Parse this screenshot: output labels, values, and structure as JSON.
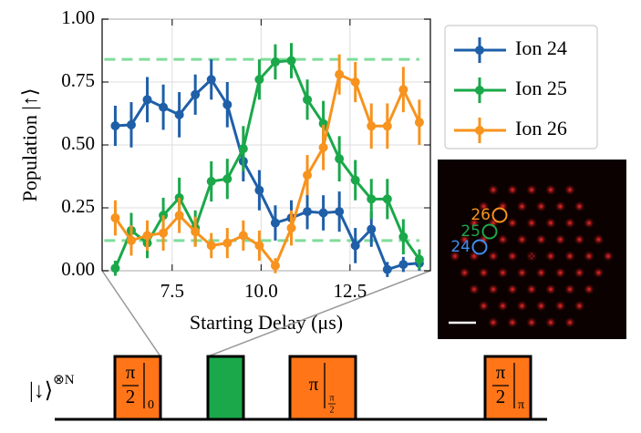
{
  "chart_data": {
    "type": "line",
    "x_label": "Starting Delay (μs)",
    "y_label": "Population |↑⟩",
    "x": [
      5.9,
      6.35,
      6.8,
      7.25,
      7.7,
      8.15,
      8.6,
      9.05,
      9.5,
      9.95,
      10.4,
      10.85,
      11.3,
      11.75,
      12.2,
      12.65,
      13.1,
      13.55,
      14.0,
      14.45
    ],
    "series": [
      {
        "name": "Ion 24",
        "color": "#1f5fa8",
        "values": [
          0.576,
          0.58,
          0.68,
          0.65,
          0.62,
          0.7,
          0.76,
          0.66,
          0.435,
          0.32,
          0.19,
          0.21,
          0.235,
          0.23,
          0.235,
          0.1,
          0.165,
          0.005,
          0.025,
          0.03
        ],
        "errors": [
          0.08,
          0.09,
          0.09,
          0.09,
          0.09,
          0.08,
          0.08,
          0.09,
          0.08,
          0.08,
          0.07,
          0.07,
          0.07,
          0.07,
          0.08,
          0.07,
          0.07,
          0.03,
          0.03,
          0.03
        ]
      },
      {
        "name": "Ion 25",
        "color": "#1aa84a",
        "values": [
          0.01,
          0.16,
          0.11,
          0.22,
          0.29,
          0.17,
          0.355,
          0.365,
          0.485,
          0.76,
          0.83,
          0.835,
          0.68,
          0.585,
          0.445,
          0.36,
          0.285,
          0.285,
          0.135,
          0.045
        ],
        "errors": [
          0.03,
          0.07,
          0.06,
          0.07,
          0.08,
          0.07,
          0.08,
          0.08,
          0.09,
          0.08,
          0.07,
          0.07,
          0.08,
          0.09,
          0.09,
          0.08,
          0.08,
          0.08,
          0.07,
          0.04
        ]
      },
      {
        "name": "Ion 26",
        "color": "#f7931e",
        "values": [
          0.21,
          0.12,
          0.14,
          0.15,
          0.22,
          0.155,
          0.1,
          0.11,
          0.14,
          0.1,
          0.02,
          0.17,
          0.38,
          0.49,
          0.78,
          0.75,
          0.575,
          0.575,
          0.72,
          0.59
        ],
        "errors": [
          0.07,
          0.06,
          0.06,
          0.07,
          0.07,
          0.06,
          0.05,
          0.06,
          0.06,
          0.06,
          0.03,
          0.07,
          0.08,
          0.09,
          0.08,
          0.08,
          0.09,
          0.09,
          0.09,
          0.09
        ]
      }
    ],
    "hlines": [
      0.84,
      0.12
    ],
    "hline_color": "#7fdc9a",
    "xlim": [
      5.53,
      14.76
    ],
    "ylim": [
      0,
      1
    ],
    "xticks": [
      7.5,
      {
        "value": 10,
        "label": "10.0"
      },
      12.5
    ],
    "yticks": [
      {
        "value": 0,
        "label": "0.00"
      },
      {
        "value": 0.25,
        "label": "0.25"
      },
      {
        "value": 0.5,
        "label": "0.50"
      },
      {
        "value": 0.75,
        "label": "0.75"
      },
      {
        "value": 1,
        "label": "1.00"
      }
    ],
    "grid": true,
    "legend": "outside-right"
  },
  "inset": {
    "ion_labels": [
      "26",
      "25",
      "24"
    ]
  },
  "sequence": {
    "state": "|↓⟩",
    "state_power": "⊗N",
    "pulses": [
      {
        "color": "#ff7518",
        "numerator": "π",
        "denominator": "2",
        "phase": "0"
      },
      {
        "color": "#1aa84a"
      },
      {
        "color": "#ff7518",
        "symbol": "π",
        "phase_numerator": "π",
        "phase_denominator": "2"
      },
      {
        "color": "#ff7518",
        "numerator": "π",
        "denominator": "2",
        "phase": "π"
      }
    ]
  }
}
